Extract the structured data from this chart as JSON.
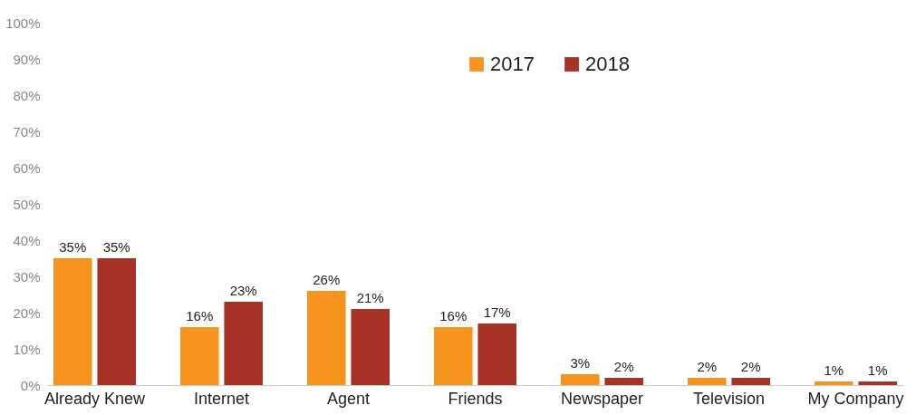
{
  "chart_data": {
    "type": "bar",
    "categories": [
      "Already Knew",
      "Internet",
      "Agent",
      "Friends",
      "Newspaper",
      "Television",
      "My Company"
    ],
    "series": [
      {
        "name": "2017",
        "color": "#f7941d",
        "values": [
          35,
          16,
          26,
          16,
          3,
          2,
          1
        ],
        "value_labels": [
          "35%",
          "16%",
          "26%",
          "16%",
          "3%",
          "2%",
          "1%"
        ]
      },
      {
        "name": "2018",
        "color": "#a93226",
        "values": [
          35,
          23,
          21,
          17,
          2,
          2,
          1
        ],
        "value_labels": [
          "35%",
          "23%",
          "21%",
          "17%",
          "2%",
          "2%",
          "1%"
        ]
      }
    ],
    "ylim": [
      0,
      100
    ],
    "yticks": [
      {
        "value": 0,
        "label": "0%"
      },
      {
        "value": 10,
        "label": "10%"
      },
      {
        "value": 20,
        "label": "20%"
      },
      {
        "value": 30,
        "label": "30%"
      },
      {
        "value": 40,
        "label": "40%"
      },
      {
        "value": 50,
        "label": "50%"
      },
      {
        "value": 60,
        "label": "60%"
      },
      {
        "value": 70,
        "label": "70%"
      },
      {
        "value": 80,
        "label": "80%"
      },
      {
        "value": 90,
        "label": "90%"
      },
      {
        "value": 100,
        "label": "100%"
      }
    ],
    "grid": false,
    "legend": "top"
  }
}
